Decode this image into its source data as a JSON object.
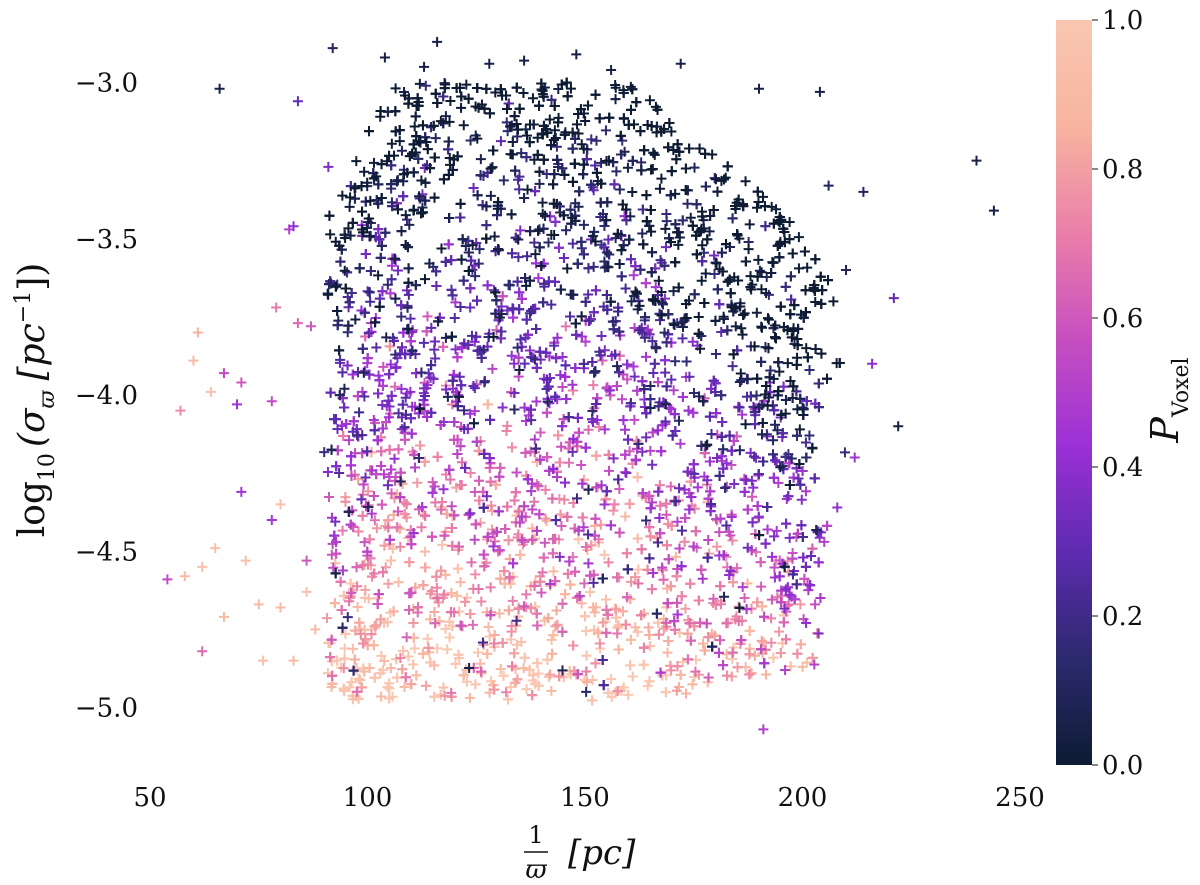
{
  "chart_data": {
    "type": "scatter",
    "marker": "plus",
    "xlabel": {
      "fraction_num": "1",
      "fraction_den": "ϖ",
      "unit": "[pc]"
    },
    "ylabel": {
      "prefix": "log",
      "sub": "10",
      "body": "(σ",
      "body_sub": "ϖ",
      "unit": "[pc",
      "unit_sup": "−1",
      "close": "])"
    },
    "xlim": [
      50,
      250
    ],
    "ylim": [
      -5.2,
      -2.8
    ],
    "xticks": [
      50,
      100,
      150,
      200,
      250
    ],
    "xtick_labels": [
      "50",
      "100",
      "150",
      "200",
      "250"
    ],
    "yticks": [
      -5.0,
      -4.5,
      -4.0,
      -3.5,
      -3.0
    ],
    "ytick_labels": [
      "−5.0",
      "−4.5",
      "−4.0",
      "−3.5",
      "−3.0"
    ],
    "colorbar": {
      "label": "P",
      "label_sub": "Voxel",
      "range": [
        0.0,
        1.0
      ],
      "ticks": [
        0.0,
        0.2,
        0.4,
        0.6,
        0.8,
        1.0
      ],
      "tick_labels": [
        "0.0",
        "0.2",
        "0.4",
        "0.6",
        "0.8",
        "1.0"
      ],
      "colormap": "magma-like",
      "stops": [
        "#0d1b33",
        "#2c2a6e",
        "#5d2bb0",
        "#9b30d6",
        "#c64fc0",
        "#ea7fa8",
        "#f7b49f",
        "#f9c7b1"
      ]
    },
    "series": [
      {
        "points": [
          [
            66,
            -3.02,
            0.05
          ],
          [
            92,
            -2.89,
            0.1
          ],
          [
            104,
            -2.92,
            0.05
          ],
          [
            116,
            -2.87,
            0.05
          ],
          [
            113,
            -2.95,
            0.05
          ],
          [
            84,
            -3.06,
            0.3
          ],
          [
            128,
            -2.94,
            0.05
          ],
          [
            136,
            -2.93,
            0.05
          ],
          [
            148,
            -2.91,
            0.05
          ],
          [
            156,
            -2.96,
            0.05
          ],
          [
            172,
            -2.94,
            0.05
          ],
          [
            190,
            -3.02,
            0.05
          ],
          [
            204,
            -3.03,
            0.05
          ],
          [
            240,
            -3.25,
            0.05
          ],
          [
            244,
            -3.41,
            0.05
          ],
          [
            221,
            -3.69,
            0.3
          ],
          [
            222,
            -4.1,
            0.05
          ],
          [
            82,
            -3.47,
            0.5
          ],
          [
            83,
            -3.46,
            0.4
          ],
          [
            91,
            -3.27,
            0.35
          ],
          [
            79,
            -3.72,
            0.7
          ],
          [
            84,
            -3.77,
            0.65
          ],
          [
            87,
            -3.78,
            0.6
          ],
          [
            60,
            -3.89,
            0.9
          ],
          [
            61,
            -3.8,
            0.85
          ],
          [
            64,
            -3.99,
            0.95
          ],
          [
            67,
            -3.93,
            0.55
          ],
          [
            70,
            -4.03,
            0.45
          ],
          [
            71,
            -3.96,
            0.6
          ],
          [
            78,
            -4.02,
            0.55
          ],
          [
            57,
            -4.05,
            0.75
          ],
          [
            54,
            -4.59,
            0.55
          ],
          [
            58,
            -4.58,
            0.9
          ],
          [
            62,
            -4.55,
            0.95
          ],
          [
            62,
            -4.82,
            0.65
          ],
          [
            65,
            -4.49,
            0.95
          ],
          [
            67,
            -4.71,
            0.9
          ],
          [
            72,
            -4.53,
            0.95
          ],
          [
            71,
            -4.31,
            0.45
          ],
          [
            75,
            -4.67,
            0.9
          ],
          [
            76,
            -4.85,
            0.95
          ],
          [
            80,
            -4.68,
            0.9
          ],
          [
            83,
            -4.85,
            0.9
          ],
          [
            78,
            -4.4,
            0.45
          ],
          [
            80,
            -4.35,
            0.95
          ],
          [
            86,
            -4.53,
            0.6
          ],
          [
            86,
            -4.63,
            0.95
          ],
          [
            88,
            -4.75,
            0.9
          ],
          [
            191,
            -5.07,
            0.5
          ],
          [
            196,
            -4.88,
            0.5
          ],
          [
            200,
            -4.87,
            0.9
          ],
          [
            205,
            -4.47,
            0.5
          ],
          [
            208,
            -4.36,
            0.4
          ],
          [
            212,
            -4.2,
            0.45
          ],
          [
            216,
            -3.9,
            0.4
          ],
          [
            206,
            -3.33,
            0.1
          ],
          [
            214,
            -3.35,
            0.1
          ],
          [
            210,
            -3.6,
            0.1
          ]
        ]
      }
    ],
    "cloud": {
      "count": 5200,
      "seed": 12345,
      "x_range": [
        86,
        210
      ],
      "y_range": [
        -5.0,
        -3.0
      ]
    }
  }
}
